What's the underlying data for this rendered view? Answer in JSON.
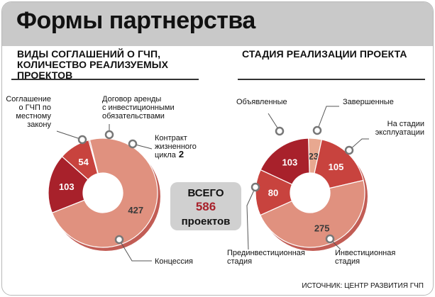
{
  "title": "Формы партнерства",
  "left_subtitle": "Виды соглашений о ГЧП, количество реализуемых проектов",
  "right_subtitle": "Стадия реализации проекта",
  "source": "Источник: Центр развития ГЧП",
  "total": {
    "line1": "ВСЕГО",
    "number": "586",
    "line2": "проектов"
  },
  "colors": {
    "dark": "#a8212b",
    "mid": "#c8433e",
    "light": "#e0917f",
    "grey": "#c9c9c9"
  },
  "chart_data": [
    {
      "type": "pie",
      "donut": true,
      "title": "Виды соглашений о ГЧП, количество реализуемых проектов",
      "slices": [
        {
          "label": "Соглашение о ГЧП по местному закону",
          "value": 103,
          "color": "#a8212b"
        },
        {
          "label": "Договор аренды с инвестиционными обязательствами",
          "value": 54,
          "color": "#c8433e"
        },
        {
          "label": "Контракт жизненного цикла",
          "value": 2,
          "color": "#b5333a"
        },
        {
          "label": "Концессия",
          "value": 427,
          "color": "#e0917f"
        }
      ]
    },
    {
      "type": "pie",
      "donut": true,
      "title": "Стадия реализации проекта",
      "slices": [
        {
          "label": "Завершенные",
          "value": 23,
          "color": "#e8a890"
        },
        {
          "label": "На стадии эксплуатации",
          "value": 105,
          "color": "#c8433e"
        },
        {
          "label": "Инвестиционная стадия",
          "value": 275,
          "color": "#e0917f"
        },
        {
          "label": "Прединвестиционная стадия",
          "value": 80,
          "color": "#c8433e"
        },
        {
          "label": "Объявленные",
          "value": 103,
          "color": "#a8212b"
        }
      ]
    }
  ]
}
